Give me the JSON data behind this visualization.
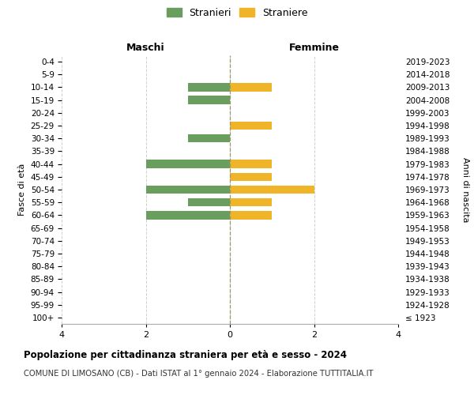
{
  "age_groups": [
    "100+",
    "95-99",
    "90-94",
    "85-89",
    "80-84",
    "75-79",
    "70-74",
    "65-69",
    "60-64",
    "55-59",
    "50-54",
    "45-49",
    "40-44",
    "35-39",
    "30-34",
    "25-29",
    "20-24",
    "15-19",
    "10-14",
    "5-9",
    "0-4"
  ],
  "birth_years": [
    "≤ 1923",
    "1924-1928",
    "1929-1933",
    "1934-1938",
    "1939-1943",
    "1944-1948",
    "1949-1953",
    "1954-1958",
    "1959-1963",
    "1964-1968",
    "1969-1973",
    "1974-1978",
    "1979-1983",
    "1984-1988",
    "1989-1993",
    "1994-1998",
    "1999-2003",
    "2004-2008",
    "2009-2013",
    "2014-2018",
    "2019-2023"
  ],
  "males": [
    0,
    0,
    0,
    0,
    0,
    0,
    0,
    0,
    2,
    1,
    2,
    0,
    2,
    0,
    1,
    0,
    0,
    1,
    1,
    0,
    0
  ],
  "females": [
    0,
    0,
    0,
    0,
    0,
    0,
    0,
    0,
    1,
    1,
    2,
    1,
    1,
    0,
    0,
    1,
    0,
    0,
    1,
    0,
    0
  ],
  "color_male": "#6a9e5f",
  "color_female": "#f0b429",
  "xlabel_left": "Maschi",
  "xlabel_right": "Femmine",
  "ylabel_left": "Fasce di età",
  "ylabel_right": "Anni di nascita",
  "legend_male": "Stranieri",
  "legend_female": "Straniere",
  "title": "Popolazione per cittadinanza straniera per età e sesso - 2024",
  "subtitle": "COMUNE DI LIMOSANO (CB) - Dati ISTAT al 1° gennaio 2024 - Elaborazione TUTTITALIA.IT",
  "xlim": 4,
  "background_color": "#ffffff",
  "grid_color": "#d0d0d0",
  "center_line_color": "#999966"
}
